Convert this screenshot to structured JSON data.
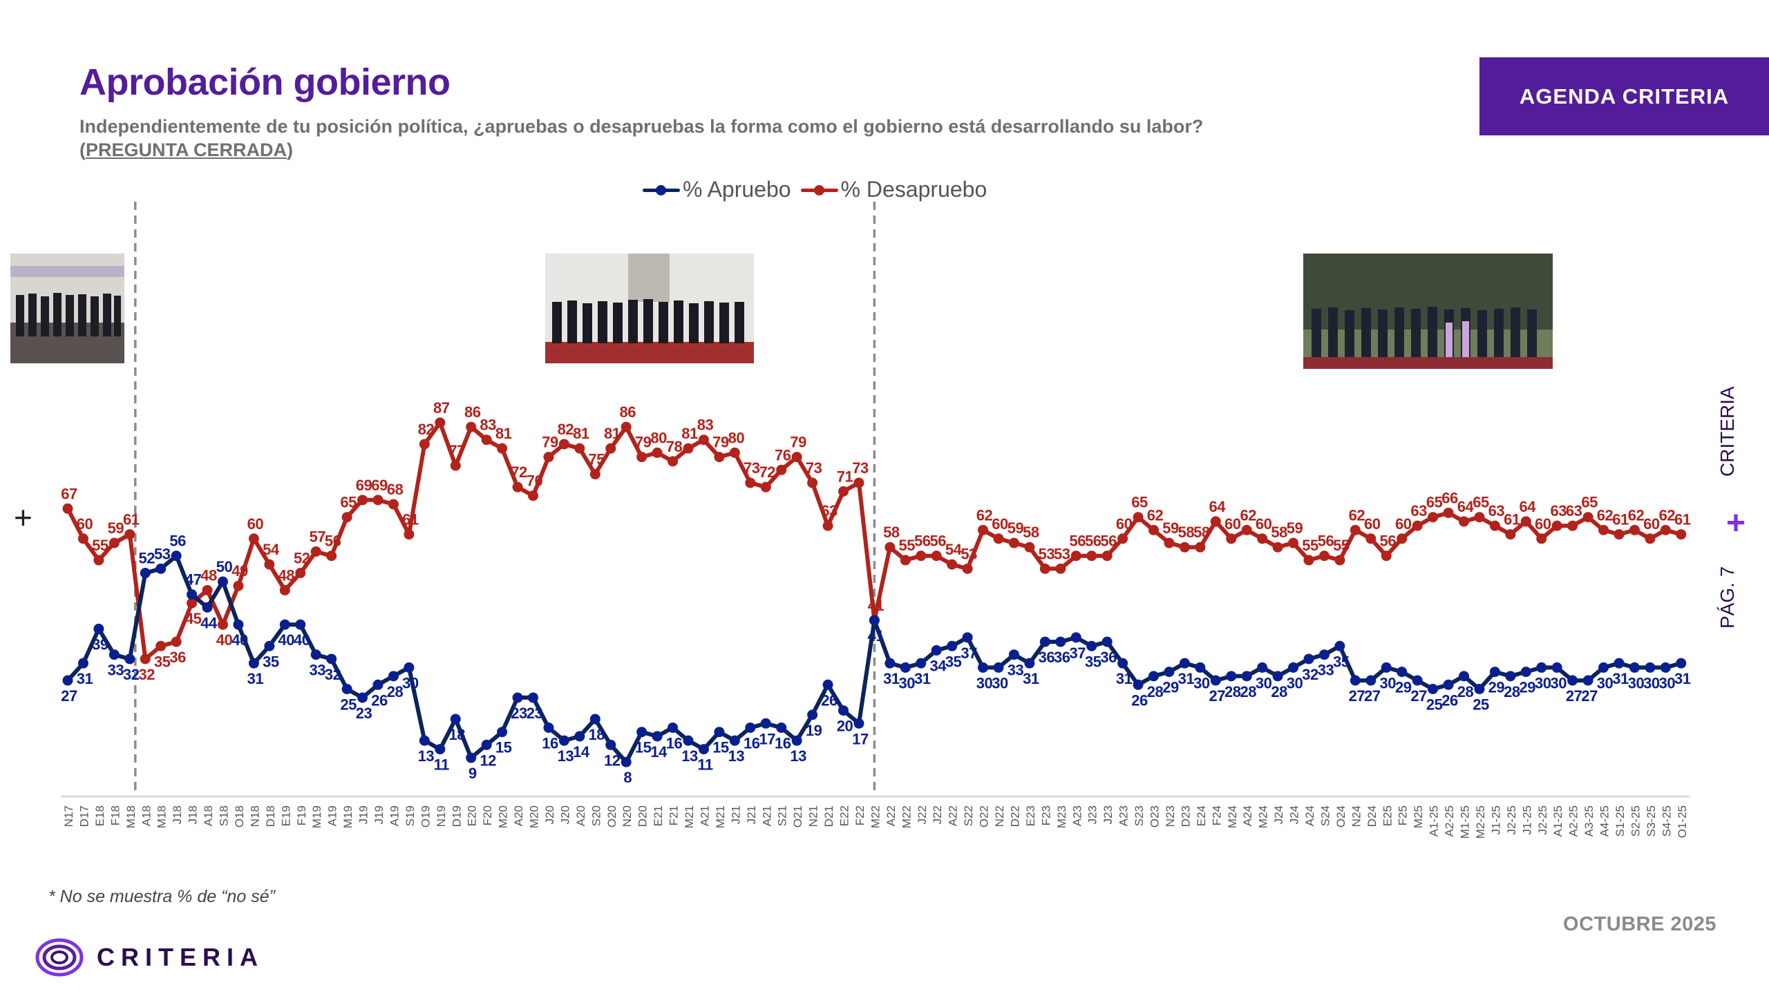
{
  "header": {
    "title": "Aprobación gobierno",
    "question": "Independientemente de tu posición política, ¿apruebas o desapruebas la forma como el gobierno está desarrollando su labor?",
    "question_type_open": "(",
    "question_type": "PREGUNTA CERRADA",
    "question_type_close": ")",
    "brand_box": "AGENDA CRITERIA"
  },
  "side": {
    "brand": "CRITERIA",
    "page": "PÁG. 7",
    "plus": "+"
  },
  "left_plus": "+",
  "footer": {
    "footnote": "* No se muestra % de “no sé”",
    "date": "OCTUBRE 2025",
    "logo_text": "CRITERIA"
  },
  "colors": {
    "apruebo": "#0a1f8f",
    "apruebo_line": "#0d2459",
    "desapruebo": "#b2231c",
    "accent": "#521c9a"
  },
  "chart_data": {
    "type": "line",
    "title": "",
    "xlabel": "",
    "ylabel": "",
    "ylim": [
      0,
      100
    ],
    "grid": false,
    "legend": {
      "position": "top-center",
      "entries": [
        "% Apruebo",
        "% Desapruebo"
      ]
    },
    "annotations": [
      "government change at M18",
      "government change at M22"
    ],
    "government_change_indices": [
      4,
      52
    ],
    "categories": [
      "N17",
      "D17",
      "E18",
      "F18",
      "M18",
      "A18",
      "M18",
      "J18",
      "J18",
      "A18",
      "S18",
      "O18",
      "N18",
      "D18",
      "E19",
      "F19",
      "M19",
      "A19",
      "M19",
      "J19",
      "J19",
      "A19",
      "S19",
      "O19",
      "N19",
      "D19",
      "E20",
      "F20",
      "M20",
      "A20",
      "M20",
      "J20",
      "J20",
      "A20",
      "S20",
      "O20",
      "N20",
      "D20",
      "E21",
      "F21",
      "M21",
      "A21",
      "M21",
      "J21",
      "J21",
      "A21",
      "S21",
      "O21",
      "N21",
      "D21",
      "E22",
      "F22",
      "M22",
      "A22",
      "M22",
      "J22",
      "J22",
      "A22",
      "S22",
      "O22",
      "N22",
      "D22",
      "E23",
      "F23",
      "M23",
      "A23",
      "J23",
      "J23",
      "A23",
      "S23",
      "O23",
      "N23",
      "D23",
      "E24",
      "F24",
      "M24",
      "A24",
      "M24",
      "J24",
      "J24",
      "A24",
      "S24",
      "O24",
      "N24",
      "D24",
      "E25",
      "F25",
      "M25",
      "A1-25",
      "A2-25",
      "M1-25",
      "M2-25",
      "J1-25",
      "J2-25",
      "J1-25",
      "J2-25",
      "A1-25",
      "A2-25",
      "A3-25",
      "A4-25",
      "S1-25",
      "S2-25",
      "S3-25",
      "S4-25",
      "O1-25"
    ],
    "series": [
      {
        "name": "% Apruebo",
        "values": [
          27,
          31,
          39,
          33,
          32,
          52,
          53,
          56,
          47,
          44,
          50,
          40,
          31,
          35,
          40,
          40,
          33,
          32,
          25,
          23,
          26,
          28,
          30,
          13,
          11,
          18,
          9,
          12,
          15,
          23,
          23,
          16,
          13,
          14,
          18,
          12,
          8,
          15,
          14,
          16,
          13,
          11,
          15,
          13,
          16,
          17,
          16,
          13,
          19,
          26,
          20,
          17,
          41,
          31,
          30,
          31,
          34,
          35,
          37,
          30,
          30,
          33,
          31,
          36,
          36,
          37,
          35,
          36,
          31,
          26,
          28,
          29,
          31,
          30,
          27,
          28,
          28,
          30,
          28,
          30,
          32,
          33,
          35,
          27,
          27,
          30,
          29,
          27,
          25,
          26,
          28,
          25,
          29,
          28,
          29,
          30,
          30,
          27,
          27,
          30,
          31,
          30,
          30,
          30,
          31
        ]
      },
      {
        "name": "% Desapruebo",
        "values": [
          67,
          60,
          55,
          59,
          61,
          32,
          35,
          36,
          45,
          48,
          40,
          49,
          60,
          54,
          48,
          52,
          57,
          56,
          65,
          69,
          69,
          68,
          61,
          82,
          87,
          77,
          86,
          83,
          81,
          72,
          70,
          79,
          82,
          81,
          75,
          81,
          86,
          79,
          80,
          78,
          81,
          83,
          79,
          80,
          73,
          72,
          76,
          79,
          73,
          63,
          71,
          73,
          41,
          58,
          55,
          56,
          56,
          54,
          53,
          62,
          60,
          59,
          58,
          53,
          53,
          56,
          56,
          56,
          60,
          65,
          62,
          59,
          58,
          58,
          64,
          60,
          62,
          60,
          58,
          59,
          55,
          56,
          55,
          62,
          60,
          56,
          60,
          63,
          65,
          66,
          64,
          65,
          63,
          61,
          64,
          60,
          63,
          63,
          65,
          62,
          61,
          62,
          60,
          62,
          61
        ]
      }
    ]
  }
}
